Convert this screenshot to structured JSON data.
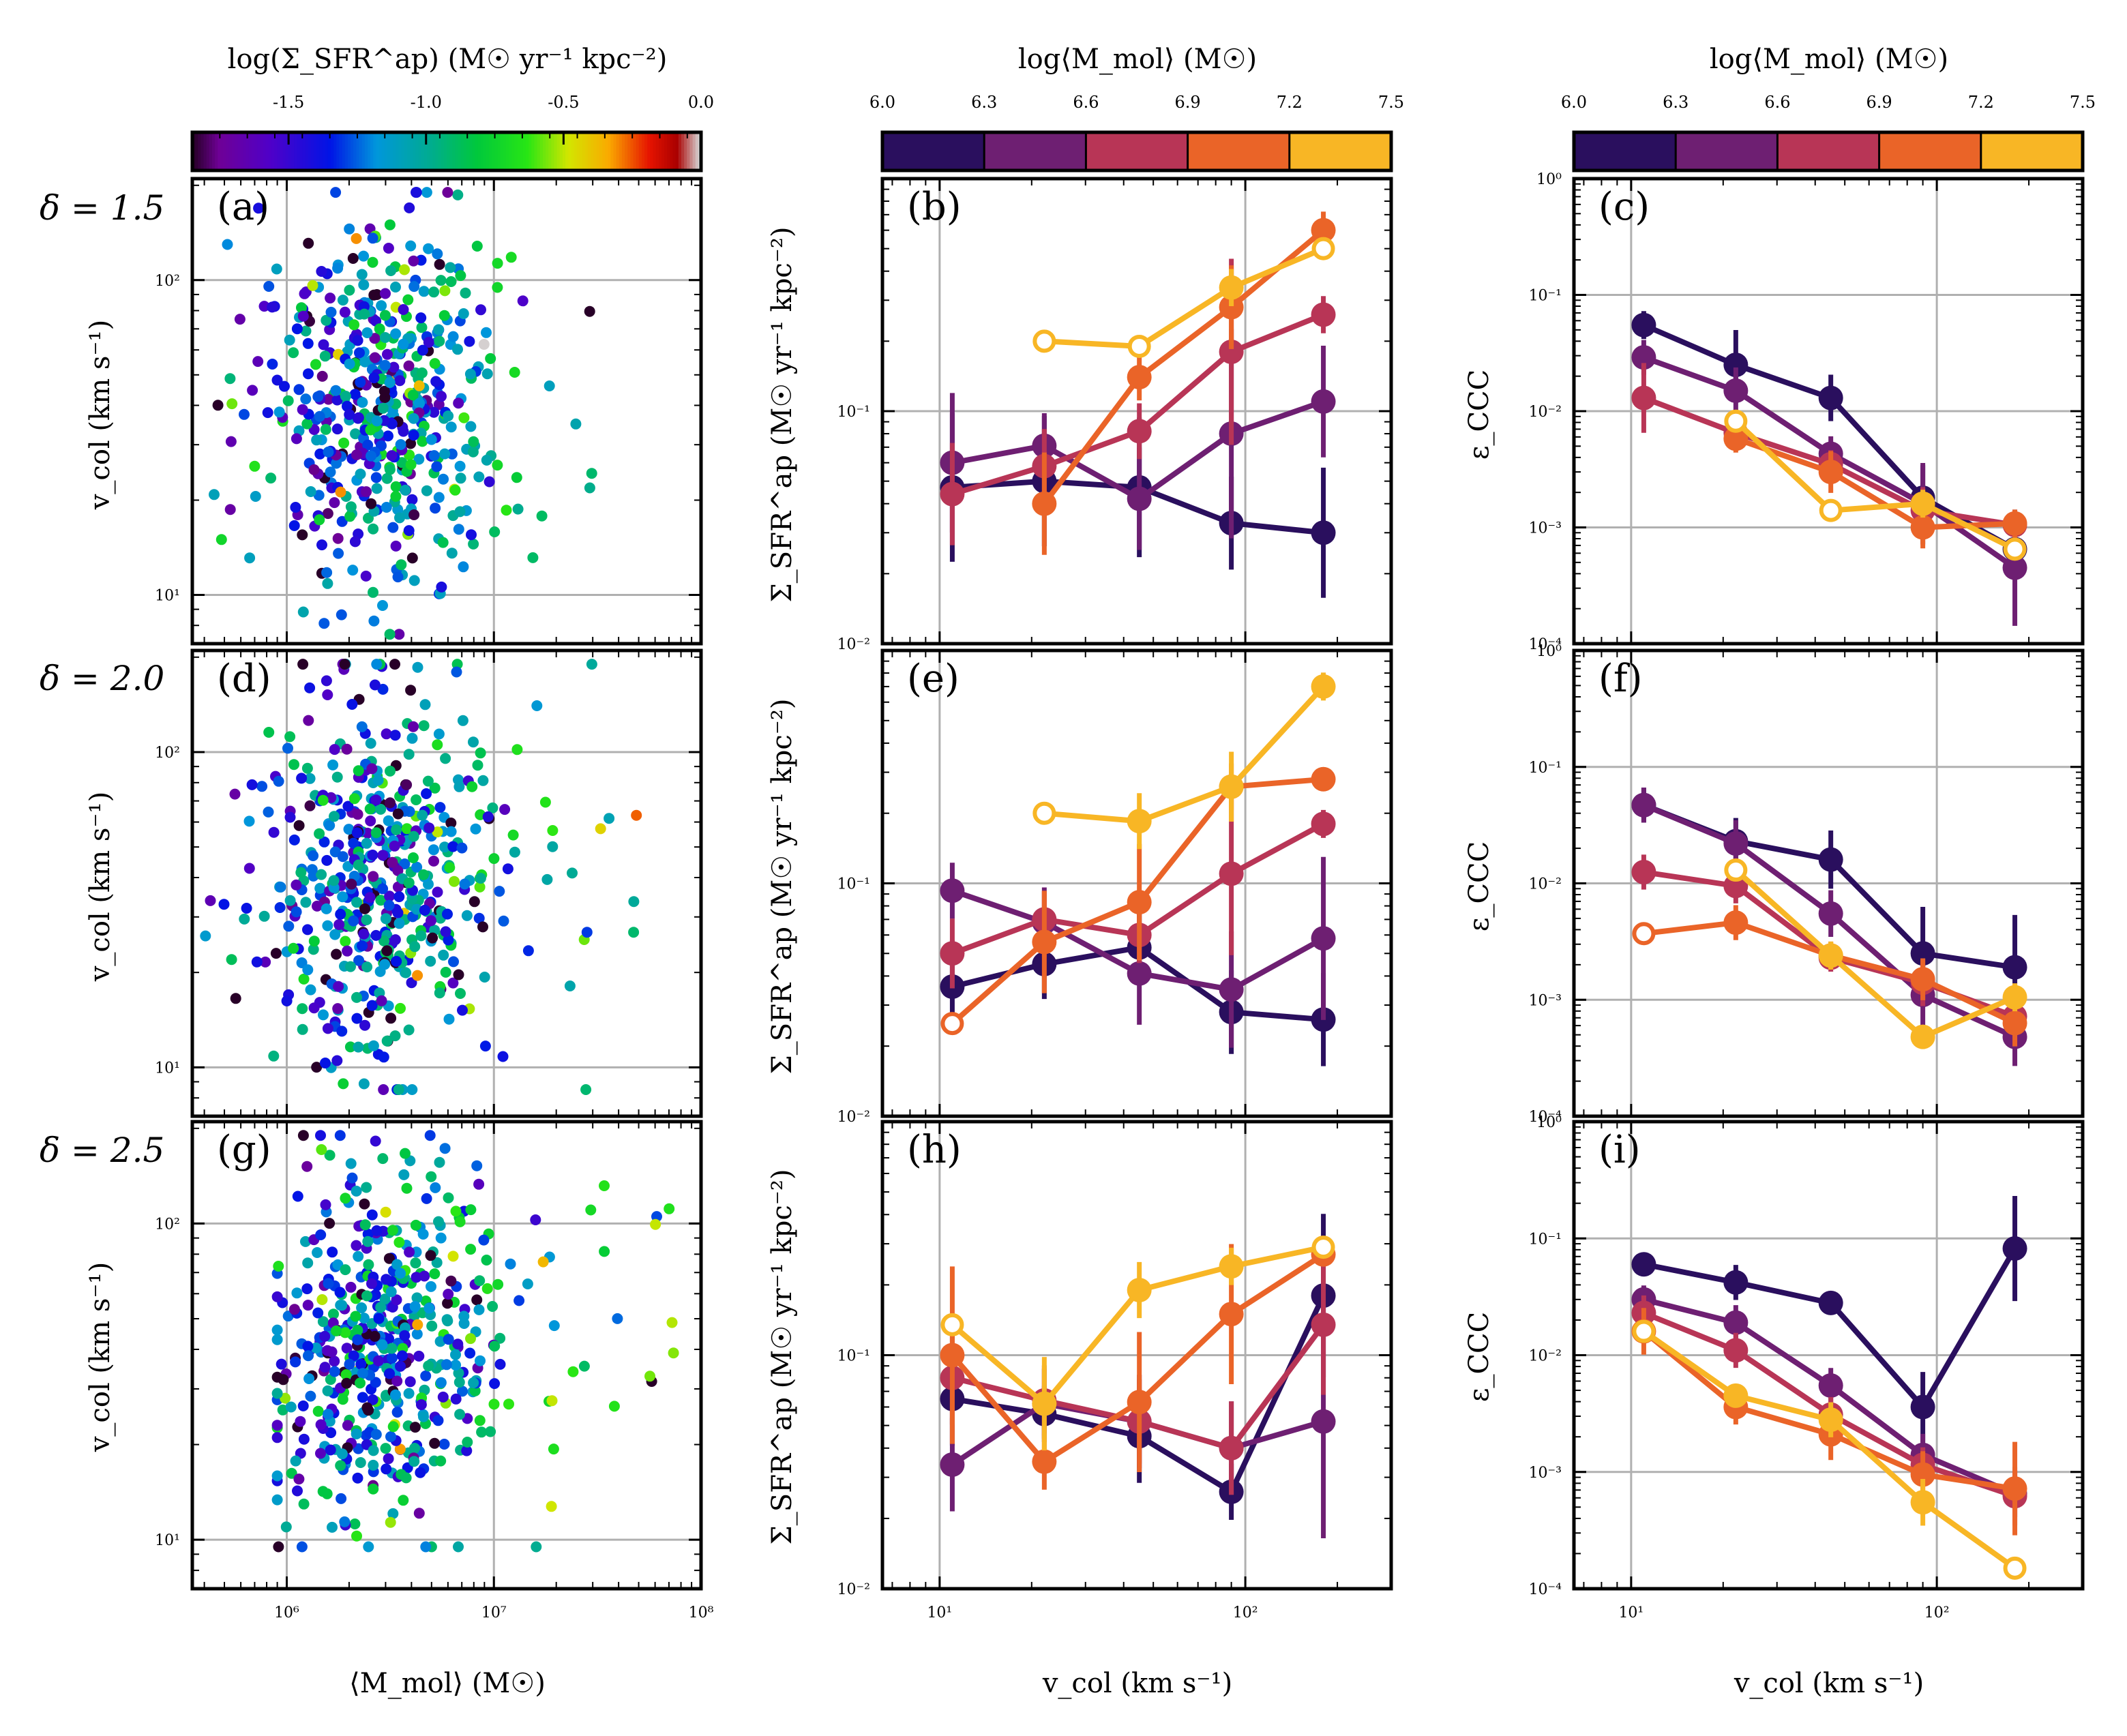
{
  "colorbars": [
    {
      "title": "log(Σ_SFR^ap) (M☉ yr⁻¹ kpc⁻²)",
      "ticks": [
        "-1.5",
        "-1.0",
        "-0.5",
        "0.0"
      ],
      "range": [
        -1.85,
        0.0
      ]
    },
    {
      "title": "log⟨M_mol⟩ (M☉)",
      "ticks": [
        "6.0",
        "6.3",
        "6.6",
        "6.9",
        "7.2",
        "7.5"
      ],
      "range": [
        6.0,
        7.5
      ]
    },
    {
      "title": "log⟨M_mol⟩ (M☉)",
      "ticks": [
        "6.0",
        "6.3",
        "6.6",
        "6.9",
        "7.2",
        "7.5"
      ],
      "range": [
        6.0,
        7.5
      ]
    }
  ],
  "bin_colors": [
    "#2a0f5e",
    "#6e1f72",
    "#b83556",
    "#ea6428",
    "#f8b625"
  ],
  "row_labels": [
    "δ = 1.5",
    "δ = 2.0",
    "δ = 2.5"
  ],
  "x_labels": {
    "left": "⟨M_mol⟩ (M☉)",
    "middle": "v_col (km s⁻¹)",
    "right": "v_col (km s⁻¹)"
  },
  "y_labels": {
    "left": "v_col (km s⁻¹)",
    "middle": "Σ_SFR^ap (M☉ yr⁻¹ kpc⁻²)",
    "right": "ε_CCC"
  },
  "tick_labels": {
    "left_x": [
      "10⁶",
      "10⁷",
      "10⁸"
    ],
    "left_y": [
      "10¹",
      "10²"
    ],
    "vcol_x": [
      "10¹",
      "10²"
    ],
    "sfr_y": [
      "10⁻²",
      "10⁻¹"
    ],
    "eps_y": [
      "10⁻⁴",
      "10⁻³",
      "10⁻²",
      "10⁻¹",
      "10⁰"
    ]
  },
  "chart_data": [
    {
      "panel": "a",
      "type": "scatter",
      "delta": 1.5,
      "xscale": "log",
      "yscale": "log",
      "xlim": [
        350000,
        100000000
      ],
      "ylim": [
        7,
        210
      ],
      "n_points": 520,
      "x_range": [
        400000,
        30000000
      ],
      "y_range": [
        7.5,
        190
      ],
      "color_quantity": "log Σ_SFR^ap",
      "color_range": [
        -1.85,
        0.0
      ],
      "seed": 11
    },
    {
      "panel": "b",
      "type": "line",
      "delta": 1.5,
      "x": [
        11,
        22,
        45,
        90,
        180
      ],
      "ylim": [
        0.01,
        1.0
      ],
      "series": [
        {
          "bin": 0,
          "values": [
            0.047,
            0.05,
            0.047,
            0.033,
            0.03
          ],
          "err": [
            0.32,
            0.28,
            0.3,
            0.2,
            0.28
          ],
          "hollow": [
            false,
            false,
            false,
            false,
            false
          ]
        },
        {
          "bin": 1,
          "values": [
            0.06,
            0.071,
            0.042,
            0.08,
            0.11
          ],
          "err": [
            0.3,
            0.14,
            0.22,
            0.45,
            0.24
          ],
          "hollow": [
            false,
            false,
            false,
            false,
            false
          ]
        },
        {
          "bin": 2,
          "values": [
            0.044,
            0.058,
            0.082,
            0.18,
            0.26
          ],
          "err": [
            0.22,
            0.16,
            0.12,
            0.4,
            0.08
          ],
          "hollow": [
            false,
            false,
            false,
            false,
            false
          ]
        },
        {
          "bin": 3,
          "values": [
            null,
            0.04,
            0.14,
            0.28,
            0.6
          ],
          "err": [
            0,
            0.22,
            0.1,
            0.18,
            0.08
          ],
          "hollow": [
            false,
            false,
            false,
            false,
            false
          ]
        },
        {
          "bin": 4,
          "values": [
            null,
            0.2,
            0.19,
            0.34,
            0.5
          ],
          "err": [
            0,
            0,
            0,
            0.08,
            0
          ],
          "hollow": [
            false,
            true,
            true,
            false,
            true
          ]
        }
      ]
    },
    {
      "panel": "c",
      "type": "line",
      "delta": 1.5,
      "x": [
        11,
        22,
        45,
        90,
        180
      ],
      "ylim": [
        0.0001,
        1.0
      ],
      "series": [
        {
          "bin": 0,
          "values": [
            0.055,
            0.025,
            0.013,
            0.0018,
            0.00065
          ],
          "err": [
            0.12,
            0.3,
            0.2,
            0.28,
            0.2
          ],
          "hollow": [
            false,
            false,
            false,
            false,
            false
          ]
        },
        {
          "bin": 1,
          "values": [
            0.029,
            0.015,
            0.0043,
            0.0016,
            0.00045
          ],
          "err": [
            0.15,
            0.2,
            0.15,
            0.35,
            0.5
          ],
          "hollow": [
            false,
            false,
            false,
            false,
            false
          ]
        },
        {
          "bin": 2,
          "values": [
            0.013,
            0.0065,
            0.0035,
            0.0014,
            0.00105
          ],
          "err": [
            0.3,
            0.15,
            0.12,
            0.2,
            0.12
          ],
          "hollow": [
            false,
            false,
            false,
            false,
            false
          ]
        },
        {
          "bin": 3,
          "values": [
            null,
            0.0058,
            0.003,
            0.001,
            0.00108
          ],
          "err": [
            0,
            0.12,
            0.18,
            0.18,
            0.12
          ],
          "hollow": [
            false,
            false,
            false,
            false,
            false
          ]
        },
        {
          "bin": 4,
          "values": [
            null,
            0.0082,
            0.0014,
            0.0016,
            0.00065
          ],
          "err": [
            0,
            0,
            0,
            0.12,
            0
          ],
          "hollow": [
            false,
            true,
            true,
            false,
            true
          ]
        }
      ]
    },
    {
      "panel": "d",
      "type": "scatter",
      "delta": 2.0,
      "xscale": "log",
      "yscale": "log",
      "xlim": [
        350000,
        100000000
      ],
      "ylim": [
        7,
        210
      ],
      "n_points": 520,
      "x_range": [
        400000,
        50000000
      ],
      "y_range": [
        8.5,
        190
      ],
      "color_quantity": "log Σ_SFR^ap",
      "color_range": [
        -1.85,
        0.0
      ],
      "seed": 23
    },
    {
      "panel": "e",
      "type": "line",
      "delta": 2.0,
      "x": [
        11,
        22,
        45,
        90,
        180
      ],
      "ylim": [
        0.01,
        1.0
      ],
      "series": [
        {
          "bin": 0,
          "values": [
            0.036,
            0.045,
            0.053,
            0.028,
            0.026
          ],
          "err": [
            0.2,
            0.15,
            0.15,
            0.18,
            0.2
          ],
          "hollow": [
            false,
            false,
            false,
            false,
            false
          ]
        },
        {
          "bin": 1,
          "values": [
            0.093,
            0.068,
            0.041,
            0.035,
            0.058
          ],
          "err": [
            0.12,
            0.15,
            0.22,
            0.25,
            0.35
          ],
          "hollow": [
            false,
            false,
            false,
            false,
            false
          ]
        },
        {
          "bin": 2,
          "values": [
            0.05,
            0.07,
            0.06,
            0.11,
            0.18
          ],
          "err": [
            0.15,
            0.12,
            0.12,
            0.35,
            0.06
          ],
          "hollow": [
            false,
            false,
            false,
            false,
            false
          ]
        },
        {
          "bin": 3,
          "values": [
            0.025,
            0.056,
            0.083,
            0.26,
            0.28
          ],
          "err": [
            0,
            0.22,
            0.25,
            0.1,
            0.05
          ],
          "hollow": [
            true,
            false,
            false,
            false,
            false
          ]
        },
        {
          "bin": 4,
          "values": [
            null,
            0.2,
            0.185,
            0.26,
            0.7
          ],
          "err": [
            0,
            0,
            0.12,
            0.15,
            0.06
          ],
          "hollow": [
            false,
            true,
            false,
            false,
            false
          ]
        }
      ]
    },
    {
      "panel": "f",
      "type": "line",
      "delta": 2.0,
      "x": [
        11,
        22,
        45,
        90,
        180
      ],
      "ylim": [
        0.0001,
        1.0
      ],
      "series": [
        {
          "bin": 0,
          "values": [
            0.047,
            0.023,
            0.016,
            0.0025,
            0.0019
          ],
          "err": [
            0.15,
            0.2,
            0.25,
            0.4,
            0.45
          ],
          "hollow": [
            false,
            false,
            false,
            false,
            false
          ]
        },
        {
          "bin": 1,
          "values": [
            0.047,
            0.022,
            0.0055,
            0.0011,
            0.00048
          ],
          "err": [
            0.15,
            0.2,
            0.2,
            0.3,
            0.25
          ],
          "hollow": [
            false,
            false,
            false,
            false,
            false
          ]
        },
        {
          "bin": 2,
          "values": [
            0.0125,
            0.0095,
            0.0023,
            0.0014,
            0.00072
          ],
          "err": [
            0.15,
            0.15,
            0.12,
            0.2,
            0.2
          ],
          "hollow": [
            false,
            false,
            false,
            false,
            false
          ]
        },
        {
          "bin": 3,
          "values": [
            0.0037,
            0.0046,
            0.0024,
            0.0015,
            0.00063
          ],
          "err": [
            0,
            0.15,
            0.12,
            0.18,
            0.2
          ],
          "hollow": [
            true,
            false,
            false,
            false,
            false
          ]
        },
        {
          "bin": 4,
          "values": [
            null,
            0.013,
            0.0024,
            0.00048,
            0.00105
          ],
          "err": [
            0,
            0,
            0.12,
            0.1,
            0.12
          ],
          "hollow": [
            false,
            true,
            false,
            false,
            false
          ]
        }
      ]
    },
    {
      "panel": "g",
      "type": "scatter",
      "delta": 2.5,
      "xscale": "log",
      "yscale": "log",
      "xlim": [
        350000,
        100000000
      ],
      "ylim": [
        7,
        210
      ],
      "n_points": 520,
      "x_range": [
        900000,
        75000000
      ],
      "y_range": [
        9.5,
        190
      ],
      "color_quantity": "log Σ_SFR^ap",
      "color_range": [
        -1.85,
        0.0
      ],
      "seed": 37
    },
    {
      "panel": "h",
      "type": "line",
      "delta": 2.5,
      "x": [
        11,
        22,
        45,
        90,
        180
      ],
      "ylim": [
        0.01,
        1.0
      ],
      "series": [
        {
          "bin": 0,
          "values": [
            0.065,
            0.056,
            0.045,
            0.026,
            0.18
          ],
          "err": [
            0.2,
            0.12,
            0.2,
            0.12,
            0.35
          ],
          "hollow": [
            false,
            false,
            false,
            false,
            false
          ]
        },
        {
          "bin": 1,
          "values": [
            0.034,
            0.062,
            0.052,
            0.04,
            0.052
          ],
          "err": [
            0.2,
            0.15,
            0.2,
            0.2,
            0.5
          ],
          "hollow": [
            false,
            false,
            false,
            false,
            false
          ]
        },
        {
          "bin": 2,
          "values": [
            0.08,
            0.064,
            0.052,
            0.04,
            0.135
          ],
          "err": [
            0.2,
            0.15,
            0.18,
            0.2,
            0.3
          ],
          "hollow": [
            false,
            false,
            false,
            false,
            false
          ]
        },
        {
          "bin": 3,
          "values": [
            0.1,
            0.035,
            0.063,
            0.15,
            0.27
          ],
          "err": [
            0.38,
            0.12,
            0.3,
            0.3,
            0.05
          ],
          "hollow": [
            false,
            false,
            false,
            false,
            false
          ]
        },
        {
          "bin": 4,
          "values": [
            0.135,
            0.062,
            0.19,
            0.24,
            0.29
          ],
          "err": [
            0,
            0.2,
            0.12,
            0.08,
            0
          ],
          "hollow": [
            true,
            false,
            false,
            false,
            true
          ]
        }
      ]
    },
    {
      "panel": "i",
      "type": "line",
      "delta": 2.5,
      "x": [
        11,
        22,
        45,
        90,
        180
      ],
      "ylim": [
        0.0001,
        1.0
      ],
      "series": [
        {
          "bin": 0,
          "values": [
            0.06,
            0.042,
            0.028,
            0.0036,
            0.082
          ],
          "err": [
            0.08,
            0.15,
            0.1,
            0.3,
            0.45
          ],
          "hollow": [
            false,
            false,
            false,
            false,
            false
          ]
        },
        {
          "bin": 1,
          "values": [
            0.03,
            0.019,
            0.0055,
            0.0014,
            0.00065
          ],
          "err": [
            0.12,
            0.15,
            0.15,
            0.18,
            0.2
          ],
          "hollow": [
            false,
            false,
            false,
            false,
            false
          ]
        },
        {
          "bin": 2,
          "values": [
            0.023,
            0.011,
            0.0031,
            0.00115,
            0.00062
          ],
          "err": [
            0.15,
            0.15,
            0.15,
            0.15,
            0.25
          ],
          "hollow": [
            false,
            false,
            false,
            false,
            false
          ]
        },
        {
          "bin": 3,
          "values": [
            0.016,
            0.0036,
            0.0021,
            0.00095,
            0.00072
          ],
          "err": [
            0.2,
            0.15,
            0.22,
            0.2,
            0.4
          ],
          "hollow": [
            false,
            false,
            false,
            false,
            false
          ]
        },
        {
          "bin": 4,
          "values": [
            0.016,
            0.0045,
            0.0028,
            0.00055,
            0.00015
          ],
          "err": [
            0,
            0.1,
            0.15,
            0.2,
            0
          ],
          "hollow": [
            true,
            false,
            false,
            false,
            true
          ]
        }
      ]
    }
  ]
}
